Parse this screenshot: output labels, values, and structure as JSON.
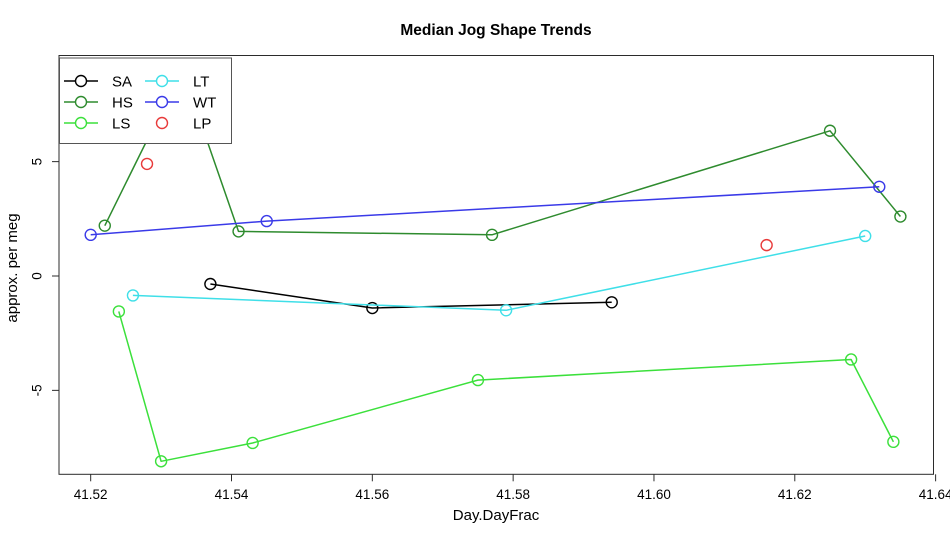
{
  "chart_data": {
    "type": "line",
    "title": "Median Jog Shape Trends",
    "xlabel": "Day.DayFrac",
    "ylabel": "approx. per meg",
    "xlim": [
      41.5155,
      41.6397
    ],
    "ylim": [
      -8.67,
      9.64
    ],
    "grid": false,
    "x_ticks": [
      41.52,
      41.54,
      41.56,
      41.58,
      41.6,
      41.62,
      41.64
    ],
    "x_tick_labels": [
      "41.52",
      "41.54",
      "41.56",
      "41.58",
      "41.60",
      "41.62",
      "41.64"
    ],
    "y_ticks": [
      -5,
      0,
      5
    ],
    "y_tick_labels": [
      "-5",
      "0",
      "5"
    ],
    "legend_position": "top-left",
    "series": [
      {
        "name": "SA",
        "color": "#000000",
        "marker": "open-circle",
        "line": true,
        "points": [
          [
            41.537,
            -0.35
          ],
          [
            41.56,
            -1.4
          ],
          [
            41.594,
            -1.15
          ]
        ]
      },
      {
        "name": "HS",
        "color": "#2E8B2E",
        "marker": "open-circle",
        "line": true,
        "points": [
          [
            41.522,
            2.2
          ],
          [
            41.533,
            9.05
          ],
          [
            41.541,
            1.95
          ],
          [
            41.577,
            1.8
          ],
          [
            41.625,
            6.35
          ],
          [
            41.635,
            2.6
          ]
        ]
      },
      {
        "name": "LS",
        "color": "#3BE03B",
        "marker": "open-circle",
        "line": true,
        "points": [
          [
            41.524,
            -1.55
          ],
          [
            41.53,
            -8.1
          ],
          [
            41.543,
            -7.3
          ],
          [
            41.575,
            -4.55
          ],
          [
            41.628,
            -3.65
          ],
          [
            41.634,
            -7.25
          ]
        ]
      },
      {
        "name": "LT",
        "color": "#3FDFE8",
        "marker": "open-circle",
        "line": true,
        "points": [
          [
            41.526,
            -0.85
          ],
          [
            41.579,
            -1.5
          ],
          [
            41.63,
            1.75
          ]
        ]
      },
      {
        "name": "WT",
        "color": "#3A3AE8",
        "marker": "open-circle",
        "line": true,
        "points": [
          [
            41.52,
            1.8
          ],
          [
            41.545,
            2.4
          ],
          [
            41.632,
            3.9
          ]
        ]
      },
      {
        "name": "LP",
        "color": "#E83A3A",
        "marker": "open-circle",
        "line": false,
        "points": [
          [
            41.528,
            4.9
          ],
          [
            41.616,
            1.35
          ]
        ]
      }
    ]
  },
  "legend": {
    "columns": 2,
    "entries": [
      {
        "label": "SA",
        "color": "#000000",
        "line": true
      },
      {
        "label": "HS",
        "color": "#2E8B2E",
        "line": true
      },
      {
        "label": "LS",
        "color": "#3BE03B",
        "line": true
      },
      {
        "label": "LT",
        "color": "#3FDFE8",
        "line": true
      },
      {
        "label": "WT",
        "color": "#3A3AE8",
        "line": true
      },
      {
        "label": "LP",
        "color": "#E83A3A",
        "line": false
      }
    ]
  },
  "style": {
    "axis_color": "#2b2b2b",
    "background": "#ffffff"
  }
}
